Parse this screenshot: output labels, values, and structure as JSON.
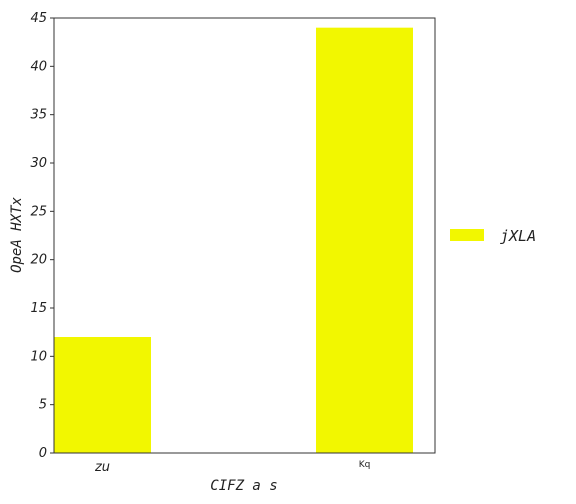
{
  "chart_data": {
    "type": "bar",
    "categories": [
      "zu",
      "Kq"
    ],
    "series": [
      {
        "name": "jXLA",
        "values": [
          12,
          44
        ],
        "color": "#f2f700"
      }
    ],
    "xlabel": "CIFZ a s",
    "ylabel": "OpeA  HXTx",
    "ylim": [
      0,
      45
    ],
    "yticks": [
      "0",
      "5",
      "10",
      "15",
      "20",
      "25",
      "30",
      "35",
      "40",
      "45"
    ],
    "grid": false,
    "legend_position": "right"
  }
}
